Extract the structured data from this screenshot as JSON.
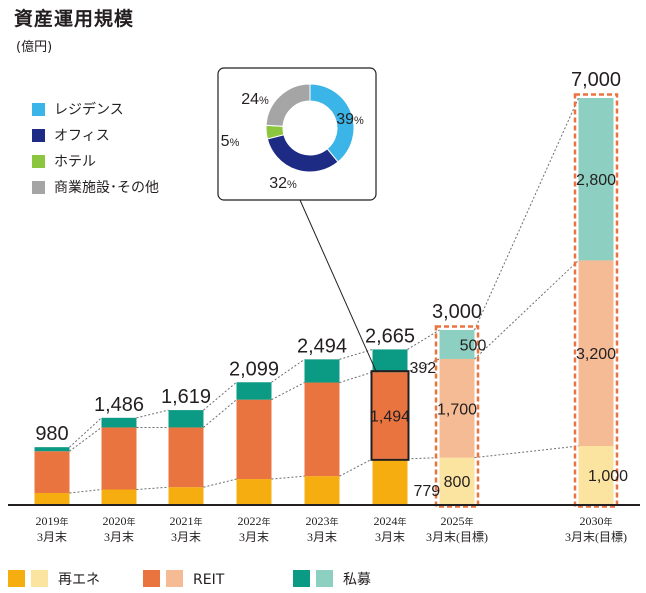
{
  "title": "資産運用規模",
  "unit": "(億円)",
  "chart_data": {
    "type": "bar",
    "stacked": true,
    "categories": [
      {
        "year": "2019",
        "nen": "年",
        "date": "3月末",
        "target": false
      },
      {
        "year": "2020",
        "nen": "年",
        "date": "3月末",
        "target": false
      },
      {
        "year": "2021",
        "nen": "年",
        "date": "3月末",
        "target": false
      },
      {
        "year": "2022",
        "nen": "年",
        "date": "3月末",
        "target": false
      },
      {
        "year": "2023",
        "nen": "年",
        "date": "3月末",
        "target": false
      },
      {
        "year": "2024",
        "nen": "年",
        "date": "3月末",
        "target": false
      },
      {
        "year": "2025",
        "nen": "年",
        "date": "3月末(目標)",
        "target": true
      },
      {
        "year": "2030",
        "nen": "年",
        "date": "3月末(目標)",
        "target": true
      }
    ],
    "series": [
      {
        "name": "再エネ",
        "color": "#f6ad0f",
        "target_color": "#fbe3a0",
        "values": [
          190,
          250,
          290,
          430,
          480,
          779,
          800,
          1000
        ]
      },
      {
        "name": "REIT",
        "color": "#ea7440",
        "target_color": "#f5bb95",
        "values": [
          720,
          1070,
          1030,
          1369,
          1614,
          1494,
          1700,
          3200
        ]
      },
      {
        "name": "私募",
        "color": "#0b9a83",
        "target_color": "#8dcfc0",
        "values": [
          70,
          166,
          299,
          300,
          400,
          392,
          500,
          2800
        ]
      }
    ],
    "totals": [
      "980",
      "1,486",
      "1,619",
      "2,099",
      "2,494",
      "2,665",
      "3,000",
      "7,000"
    ],
    "segment_labels": {
      "2024": [
        "779",
        "1,494",
        "392"
      ],
      "2025": [
        "800",
        "1,700",
        "500"
      ],
      "2030": [
        "1,000",
        "3,200",
        "2,800"
      ]
    },
    "ylim": [
      0,
      7000
    ],
    "legend_position": "bottom",
    "inset_pie": {
      "type": "pie",
      "style": "donut",
      "for_category": "2024",
      "slices": [
        {
          "name": "レジデンス",
          "value": 39,
          "label": "39",
          "color": "#3bb5e8"
        },
        {
          "name": "オフィス",
          "value": 32,
          "label": "32",
          "color": "#1e2b84"
        },
        {
          "name": "ホテル",
          "value": 5,
          "label": "5",
          "color": "#8cc63f"
        },
        {
          "name": "商業施設･その他",
          "value": 24,
          "label": "24",
          "color": "#a5a5a5"
        }
      ],
      "percent_sign": "%"
    }
  }
}
